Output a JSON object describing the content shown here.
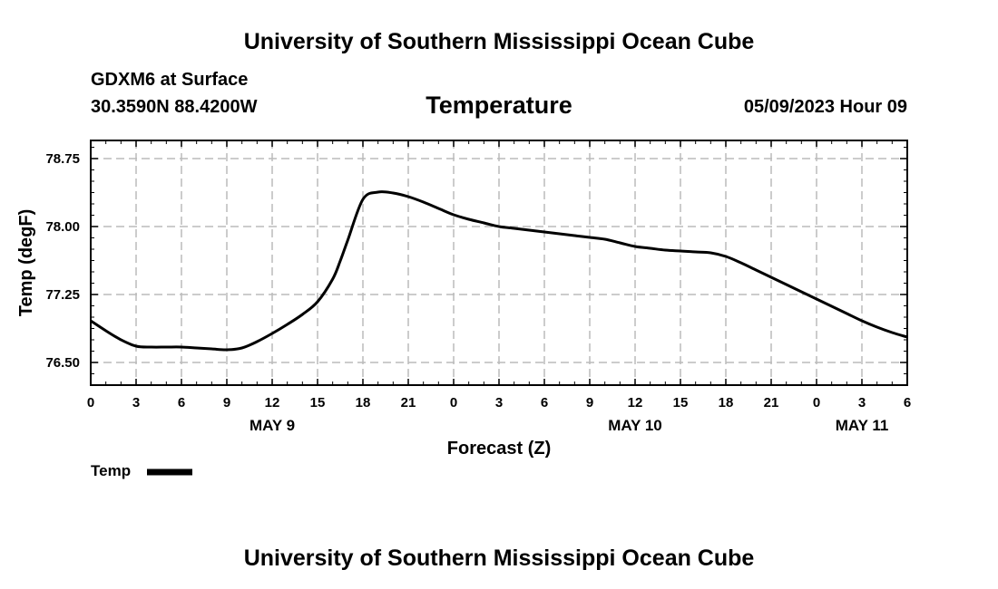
{
  "header": {
    "title": "University of Southern Mississippi Ocean Cube",
    "station": "GDXM6 at Surface",
    "coords": "30.3590N  88.4200W",
    "datetime": "05/09/2023 Hour 09"
  },
  "footer": {
    "title": "University of Southern Mississippi Ocean Cube"
  },
  "chart_data": {
    "type": "line",
    "title": "Temperature",
    "xlabel": "Forecast (Z)",
    "ylabel": "Temp (degF)",
    "xlim": [
      0,
      54
    ],
    "ylim": [
      76.25,
      78.95
    ],
    "grid": true,
    "legend_position": "bottom-left",
    "x_ticks": [
      0,
      3,
      6,
      9,
      12,
      15,
      18,
      21,
      24,
      27,
      30,
      33,
      36,
      39,
      42,
      45,
      48,
      51,
      54
    ],
    "x_tick_labels": [
      "0",
      "3",
      "6",
      "9",
      "12",
      "15",
      "18",
      "21",
      "0",
      "3",
      "6",
      "9",
      "12",
      "15",
      "18",
      "21",
      "0",
      "3",
      "6"
    ],
    "y_ticks": [
      76.5,
      77.25,
      78.0,
      78.75
    ],
    "y_tick_labels": [
      "76.50",
      "77.25",
      "78.00",
      "78.75"
    ],
    "date_labels": [
      {
        "x": 12,
        "label": "MAY 9"
      },
      {
        "x": 36,
        "label": "MAY 10"
      },
      {
        "x": 51,
        "label": "MAY 11"
      }
    ],
    "series": [
      {
        "name": "Temp",
        "color": "#000000",
        "x": [
          0,
          1,
          2,
          3,
          4,
          5,
          6,
          7,
          8,
          9,
          10,
          11,
          12,
          13,
          14,
          15,
          16,
          16.5,
          17,
          18,
          19,
          20,
          21,
          22,
          23,
          24,
          25,
          26,
          27,
          28,
          29,
          30,
          31,
          32,
          33,
          34,
          35,
          36,
          37,
          38,
          39,
          40,
          41,
          42,
          43,
          44,
          45,
          46,
          47,
          48,
          49,
          50,
          51,
          52,
          53,
          54
        ],
        "values": [
          76.96,
          76.85,
          76.75,
          76.68,
          76.67,
          76.67,
          76.67,
          76.66,
          76.65,
          76.64,
          76.66,
          76.73,
          76.82,
          76.92,
          77.03,
          77.17,
          77.42,
          77.62,
          77.85,
          78.3,
          78.38,
          78.37,
          78.33,
          78.27,
          78.2,
          78.13,
          78.08,
          78.04,
          78.0,
          77.98,
          77.96,
          77.94,
          77.92,
          77.9,
          77.88,
          77.86,
          77.82,
          77.78,
          77.76,
          77.74,
          77.73,
          77.72,
          77.71,
          77.67,
          77.6,
          77.52,
          77.44,
          77.36,
          77.28,
          77.2,
          77.12,
          77.04,
          76.96,
          76.89,
          76.83,
          76.78
        ]
      }
    ]
  }
}
